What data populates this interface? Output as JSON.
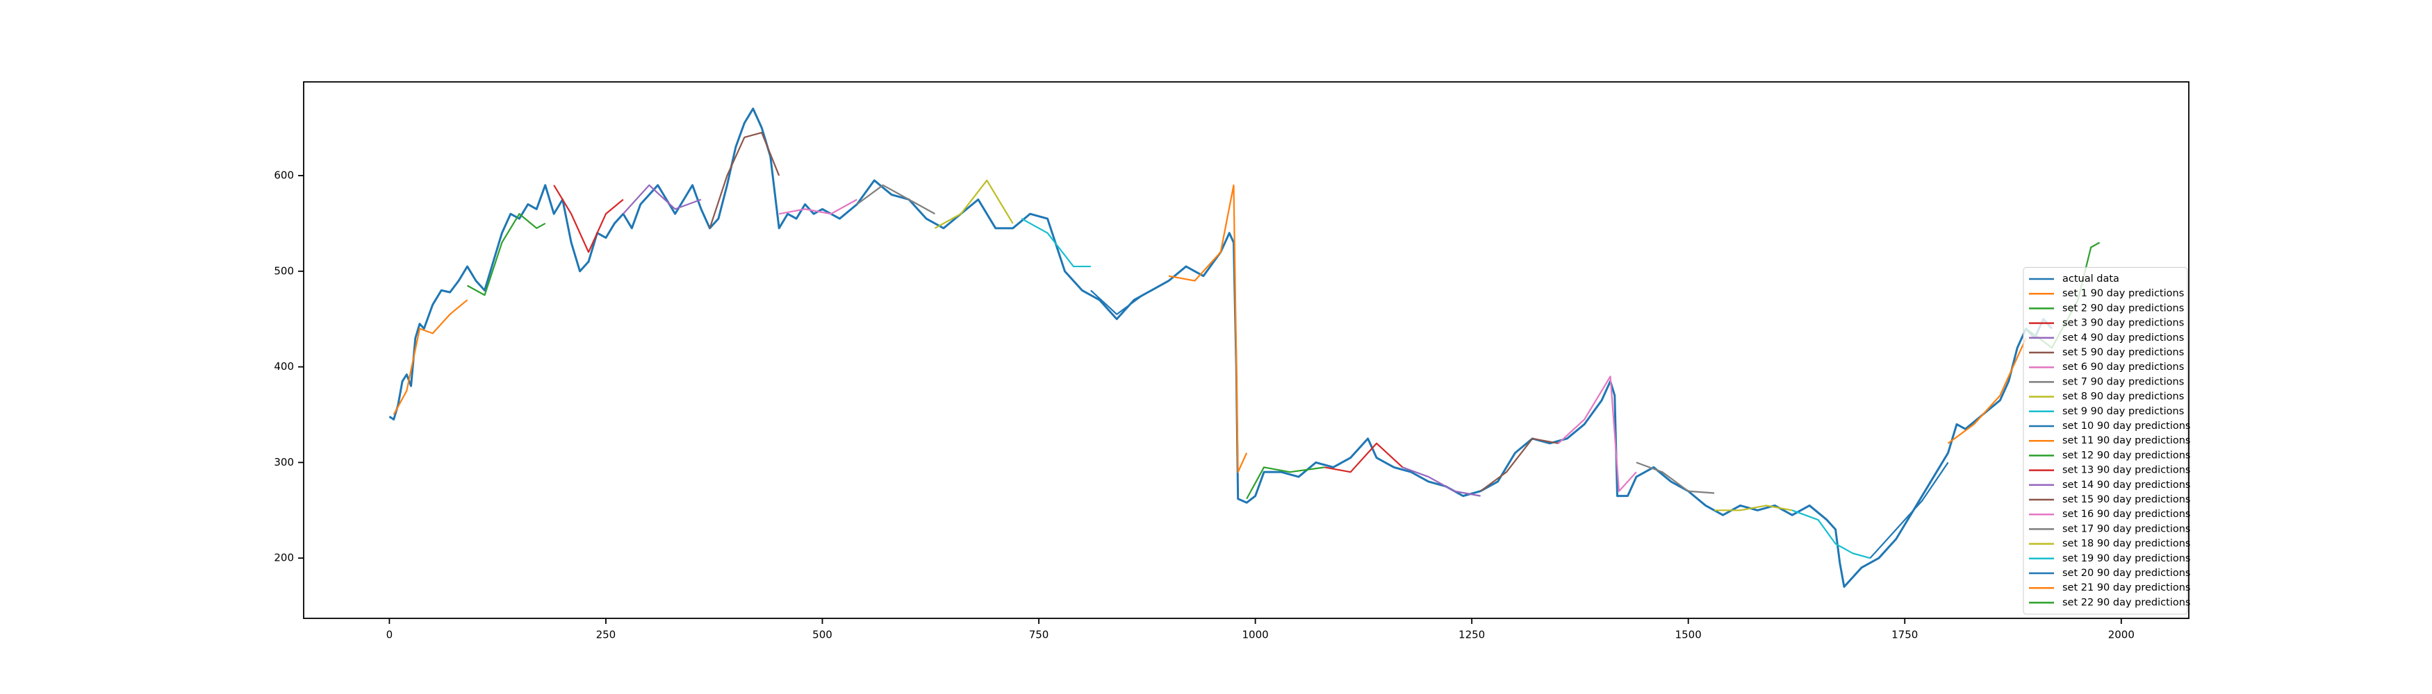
{
  "chart_data": {
    "type": "line",
    "xlim": [
      -99,
      2078
    ],
    "ylim": [
      137,
      698
    ],
    "xticks": [
      0,
      250,
      500,
      750,
      1000,
      1250,
      1500,
      1750,
      2000
    ],
    "yticks": [
      200,
      300,
      400,
      500,
      600
    ],
    "grid": false,
    "legend": "lower right",
    "series": [
      {
        "name": "actual data",
        "color": "#1f77b4",
        "x": [
          0,
          5,
          10,
          15,
          20,
          25,
          30,
          35,
          40,
          50,
          60,
          70,
          80,
          90,
          100,
          110,
          120,
          130,
          140,
          150,
          160,
          170,
          180,
          190,
          200,
          210,
          220,
          230,
          240,
          250,
          260,
          270,
          280,
          290,
          300,
          310,
          320,
          330,
          340,
          350,
          360,
          370,
          380,
          390,
          400,
          410,
          420,
          430,
          440,
          450,
          460,
          470,
          480,
          490,
          500,
          520,
          540,
          560,
          580,
          600,
          620,
          640,
          660,
          680,
          700,
          720,
          740,
          760,
          780,
          800,
          820,
          840,
          860,
          880,
          900,
          920,
          940,
          960,
          970,
          975,
          978,
          980,
          990,
          1000,
          1010,
          1030,
          1050,
          1070,
          1090,
          1110,
          1130,
          1140,
          1160,
          1180,
          1200,
          1220,
          1240,
          1260,
          1280,
          1300,
          1320,
          1340,
          1360,
          1380,
          1400,
          1410,
          1415,
          1418,
          1430,
          1440,
          1460,
          1480,
          1500,
          1520,
          1540,
          1560,
          1580,
          1600,
          1620,
          1640,
          1660,
          1670,
          1675,
          1680,
          1700,
          1720,
          1740,
          1760,
          1780,
          1800,
          1810,
          1820,
          1840,
          1860,
          1870,
          1880,
          1890,
          1900,
          1910,
          1920
        ],
        "values": [
          348,
          345,
          360,
          385,
          392,
          380,
          430,
          445,
          440,
          465,
          480,
          478,
          490,
          505,
          490,
          480,
          510,
          540,
          560,
          555,
          570,
          565,
          590,
          560,
          575,
          530,
          500,
          510,
          540,
          535,
          550,
          560,
          545,
          570,
          580,
          590,
          575,
          560,
          575,
          590,
          565,
          545,
          555,
          590,
          630,
          655,
          670,
          650,
          620,
          545,
          560,
          555,
          570,
          560,
          565,
          555,
          570,
          595,
          580,
          575,
          555,
          545,
          560,
          575,
          545,
          545,
          560,
          555,
          500,
          480,
          470,
          450,
          470,
          480,
          490,
          505,
          495,
          520,
          540,
          530,
          400,
          262,
          258,
          265,
          290,
          290,
          285,
          300,
          295,
          305,
          325,
          305,
          295,
          290,
          280,
          275,
          265,
          270,
          280,
          310,
          325,
          320,
          325,
          340,
          365,
          385,
          370,
          265,
          265,
          285,
          295,
          280,
          270,
          255,
          245,
          255,
          250,
          255,
          245,
          255,
          240,
          230,
          195,
          170,
          190,
          200,
          220,
          250,
          280,
          310,
          340,
          335,
          350,
          365,
          385,
          420,
          440,
          430,
          450,
          440
        ]
      },
      {
        "name": "set 1 90 day predictions",
        "color": "#ff7f0e",
        "x": [
          5,
          20,
          35,
          50,
          70,
          90
        ],
        "values": [
          350,
          375,
          440,
          435,
          455,
          470
        ]
      },
      {
        "name": "set 2 90 day predictions",
        "color": "#2ca02c",
        "x": [
          90,
          110,
          130,
          150,
          170,
          180
        ],
        "values": [
          485,
          475,
          530,
          560,
          545,
          550
        ]
      },
      {
        "name": "set 3 90 day predictions",
        "color": "#d62728",
        "x": [
          190,
          210,
          230,
          250,
          270
        ],
        "values": [
          590,
          560,
          520,
          560,
          575
        ]
      },
      {
        "name": "set 4 90 day predictions",
        "color": "#9467bd",
        "x": [
          270,
          300,
          330,
          360
        ],
        "values": [
          560,
          590,
          565,
          575
        ]
      },
      {
        "name": "set 5 90 day predictions",
        "color": "#8c564b",
        "x": [
          370,
          390,
          410,
          430,
          450
        ],
        "values": [
          545,
          600,
          640,
          645,
          600
        ]
      },
      {
        "name": "set 6 90 day predictions",
        "color": "#e377c2",
        "x": [
          450,
          480,
          510,
          540
        ],
        "values": [
          560,
          565,
          560,
          575
        ]
      },
      {
        "name": "set 7 90 day predictions",
        "color": "#7f7f7f",
        "x": [
          540,
          570,
          600,
          630
        ],
        "values": [
          570,
          590,
          575,
          560
        ]
      },
      {
        "name": "set 8 90 day predictions",
        "color": "#bcbd22",
        "x": [
          630,
          660,
          690,
          720
        ],
        "values": [
          545,
          560,
          595,
          550
        ]
      },
      {
        "name": "set 9 90 day predictions",
        "color": "#17becf",
        "x": [
          730,
          760,
          790,
          810
        ],
        "values": [
          555,
          540,
          505,
          505
        ]
      },
      {
        "name": "set 10 90 day predictions",
        "color": "#1f77b4",
        "x": [
          810,
          840,
          870,
          900
        ],
        "values": [
          480,
          455,
          475,
          490
        ]
      },
      {
        "name": "set 11 90 day predictions",
        "color": "#ff7f0e",
        "x": [
          900,
          930,
          960,
          975,
          980,
          990
        ],
        "values": [
          495,
          490,
          520,
          590,
          290,
          310
        ]
      },
      {
        "name": "set 12 90 day predictions",
        "color": "#2ca02c",
        "x": [
          990,
          1010,
          1040,
          1080
        ],
        "values": [
          262,
          295,
          290,
          295
        ]
      },
      {
        "name": "set 13 90 day predictions",
        "color": "#d62728",
        "x": [
          1080,
          1110,
          1140,
          1170
        ],
        "values": [
          295,
          290,
          320,
          295
        ]
      },
      {
        "name": "set 14 90 day predictions",
        "color": "#9467bd",
        "x": [
          1170,
          1200,
          1230,
          1260
        ],
        "values": [
          295,
          285,
          270,
          265
        ]
      },
      {
        "name": "set 15 90 day predictions",
        "color": "#8c564b",
        "x": [
          1260,
          1290,
          1320,
          1350
        ],
        "values": [
          270,
          290,
          325,
          320
        ]
      },
      {
        "name": "set 16 90 day predictions",
        "color": "#e377c2",
        "x": [
          1350,
          1380,
          1410,
          1420,
          1440
        ],
        "values": [
          320,
          345,
          390,
          270,
          290
        ]
      },
      {
        "name": "set 17 90 day predictions",
        "color": "#7f7f7f",
        "x": [
          1440,
          1470,
          1500,
          1530
        ],
        "values": [
          300,
          290,
          270,
          268
        ]
      },
      {
        "name": "set 18 90 day predictions",
        "color": "#bcbd22",
        "x": [
          1530,
          1560,
          1590,
          1620
        ],
        "values": [
          250,
          250,
          255,
          250
        ]
      },
      {
        "name": "set 19 90 day predictions",
        "color": "#17becf",
        "x": [
          1620,
          1650,
          1670,
          1690,
          1710
        ],
        "values": [
          250,
          240,
          215,
          205,
          200
        ]
      },
      {
        "name": "set 20 90 day predictions",
        "color": "#1f77b4",
        "x": [
          1710,
          1740,
          1770,
          1800
        ],
        "values": [
          200,
          230,
          260,
          300
        ]
      },
      {
        "name": "set 21 90 day predictions",
        "color": "#ff7f0e",
        "x": [
          1800,
          1830,
          1860,
          1890
        ],
        "values": [
          320,
          340,
          370,
          430
        ]
      },
      {
        "name": "set 22 90 day predictions",
        "color": "#2ca02c",
        "x": [
          1890,
          1920,
          1950,
          1965,
          1975
        ],
        "values": [
          440,
          420,
          470,
          525,
          530
        ]
      }
    ]
  }
}
